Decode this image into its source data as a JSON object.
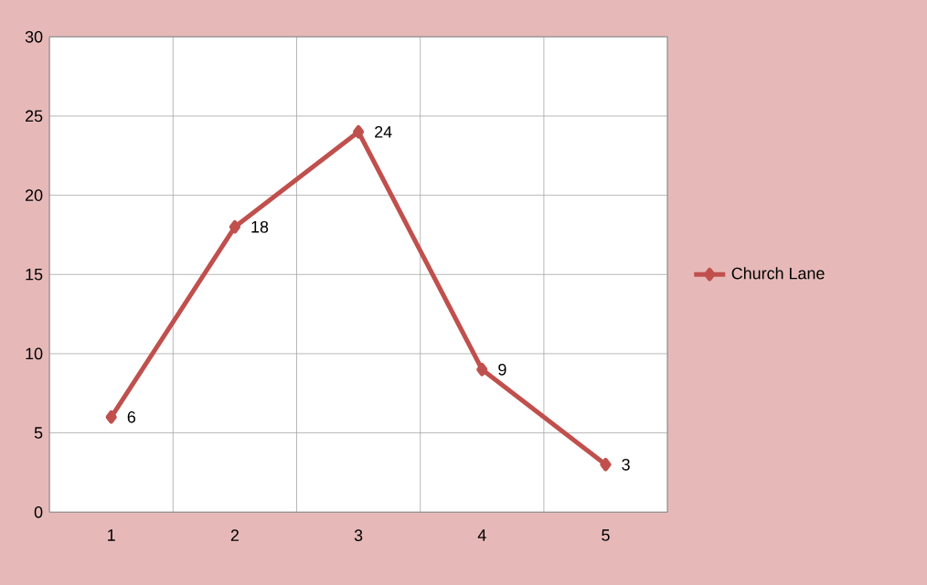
{
  "chart_data": {
    "type": "line",
    "categories": [
      "1",
      "2",
      "3",
      "4",
      "5"
    ],
    "series": [
      {
        "name": "Church Lane",
        "color": "#c0504d",
        "values": [
          6,
          18,
          24,
          9,
          3
        ]
      }
    ],
    "ylim": [
      0,
      30
    ],
    "yticks": [
      0,
      5,
      10,
      15,
      20,
      25,
      30
    ],
    "grid": true,
    "legend": "right",
    "marker": "diamond",
    "line_style": "solid",
    "data_labels": true
  }
}
